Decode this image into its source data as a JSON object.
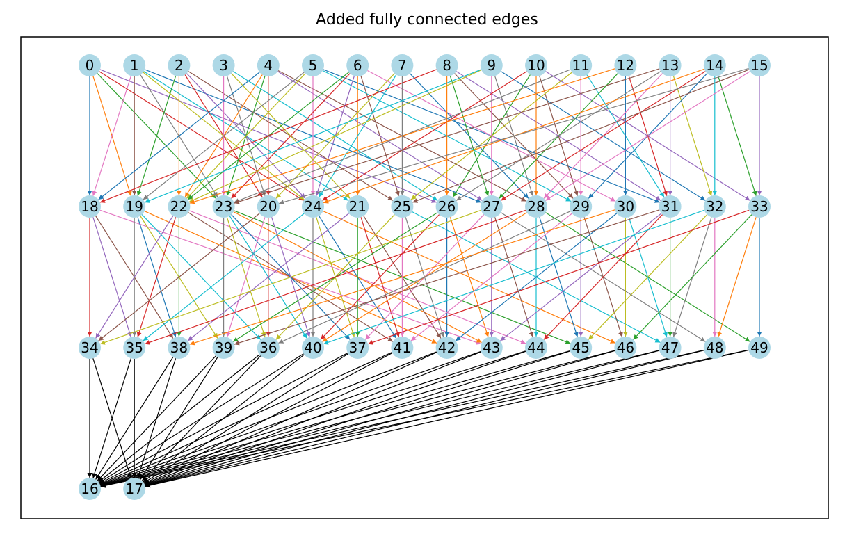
{
  "title": "Added fully connected edges",
  "colors": {
    "node_fill": "#add8e6",
    "final_edge": "#000000",
    "edge_cycle": [
      "#1f77b4",
      "#ff7f0e",
      "#2ca02c",
      "#d62728",
      "#9467bd",
      "#8c564b",
      "#e377c2",
      "#7f7f7f",
      "#bcbd22",
      "#17becf"
    ]
  },
  "layers": [
    [
      "0",
      "1",
      "2",
      "3",
      "4",
      "5",
      "6",
      "7",
      "8",
      "9",
      "10",
      "11",
      "12",
      "13",
      "14",
      "15"
    ],
    [
      "18",
      "19",
      "22",
      "23",
      "20",
      "24",
      "21",
      "25",
      "26",
      "27",
      "28",
      "29",
      "30",
      "31",
      "32",
      "33"
    ],
    [
      "34",
      "35",
      "38",
      "39",
      "36",
      "40",
      "37",
      "41",
      "42",
      "43",
      "44",
      "45",
      "46",
      "47",
      "48",
      "49"
    ],
    [
      "16",
      "17"
    ]
  ],
  "edges_layer1": [
    [
      "0",
      "18"
    ],
    [
      "0",
      "19"
    ],
    [
      "0",
      "23"
    ],
    [
      "0",
      "24"
    ],
    [
      "0",
      "26"
    ],
    [
      "1",
      "19"
    ],
    [
      "1",
      "18"
    ],
    [
      "1",
      "23"
    ],
    [
      "1",
      "24"
    ],
    [
      "1",
      "21"
    ],
    [
      "1",
      "27"
    ],
    [
      "2",
      "22"
    ],
    [
      "2",
      "19"
    ],
    [
      "2",
      "20"
    ],
    [
      "2",
      "24"
    ],
    [
      "2",
      "25"
    ],
    [
      "3",
      "23"
    ],
    [
      "3",
      "20"
    ],
    [
      "3",
      "21"
    ],
    [
      "3",
      "26"
    ],
    [
      "4",
      "18"
    ],
    [
      "4",
      "22"
    ],
    [
      "4",
      "23"
    ],
    [
      "4",
      "20"
    ],
    [
      "4",
      "27"
    ],
    [
      "4",
      "28"
    ],
    [
      "5",
      "24"
    ],
    [
      "5",
      "19"
    ],
    [
      "5",
      "22"
    ],
    [
      "5",
      "29"
    ],
    [
      "5",
      "31"
    ],
    [
      "6",
      "21"
    ],
    [
      "6",
      "22"
    ],
    [
      "6",
      "23"
    ],
    [
      "6",
      "24"
    ],
    [
      "6",
      "25"
    ],
    [
      "6",
      "30"
    ],
    [
      "7",
      "25"
    ],
    [
      "7",
      "20"
    ],
    [
      "7",
      "24"
    ],
    [
      "7",
      "28"
    ],
    [
      "8",
      "26"
    ],
    [
      "8",
      "27"
    ],
    [
      "8",
      "18"
    ],
    [
      "8",
      "31"
    ],
    [
      "8",
      "29"
    ],
    [
      "9",
      "27"
    ],
    [
      "9",
      "28"
    ],
    [
      "9",
      "22"
    ],
    [
      "9",
      "19"
    ],
    [
      "9",
      "32"
    ],
    [
      "10",
      "28"
    ],
    [
      "10",
      "26"
    ],
    [
      "10",
      "24"
    ],
    [
      "10",
      "33"
    ],
    [
      "10",
      "29"
    ],
    [
      "11",
      "29"
    ],
    [
      "11",
      "23"
    ],
    [
      "11",
      "25"
    ],
    [
      "11",
      "31"
    ],
    [
      "12",
      "30"
    ],
    [
      "12",
      "22"
    ],
    [
      "12",
      "27"
    ],
    [
      "12",
      "31"
    ],
    [
      "13",
      "31"
    ],
    [
      "13",
      "23"
    ],
    [
      "13",
      "28"
    ],
    [
      "13",
      "26"
    ],
    [
      "13",
      "32"
    ],
    [
      "14",
      "32"
    ],
    [
      "14",
      "29"
    ],
    [
      "14",
      "24"
    ],
    [
      "14",
      "33"
    ],
    [
      "14",
      "27"
    ],
    [
      "15",
      "33"
    ],
    [
      "15",
      "25"
    ],
    [
      "15",
      "28"
    ],
    [
      "15",
      "20"
    ]
  ],
  "edges_layer2": [
    [
      "18",
      "34"
    ],
    [
      "18",
      "35"
    ],
    [
      "18",
      "38"
    ],
    [
      "18",
      "43"
    ],
    [
      "19",
      "35"
    ],
    [
      "19",
      "39"
    ],
    [
      "19",
      "36"
    ],
    [
      "19",
      "38"
    ],
    [
      "19",
      "42"
    ],
    [
      "22",
      "38"
    ],
    [
      "22",
      "35"
    ],
    [
      "22",
      "34"
    ],
    [
      "22",
      "41"
    ],
    [
      "22",
      "44"
    ],
    [
      "23",
      "39"
    ],
    [
      "23",
      "36"
    ],
    [
      "23",
      "40"
    ],
    [
      "23",
      "37"
    ],
    [
      "23",
      "43"
    ],
    [
      "23",
      "45"
    ],
    [
      "20",
      "36"
    ],
    [
      "20",
      "40"
    ],
    [
      "20",
      "34"
    ],
    [
      "20",
      "39"
    ],
    [
      "24",
      "40"
    ],
    [
      "24",
      "37"
    ],
    [
      "24",
      "35"
    ],
    [
      "24",
      "41"
    ],
    [
      "24",
      "46"
    ],
    [
      "21",
      "37"
    ],
    [
      "21",
      "41"
    ],
    [
      "21",
      "38"
    ],
    [
      "21",
      "42"
    ],
    [
      "25",
      "41"
    ],
    [
      "25",
      "42"
    ],
    [
      "25",
      "36"
    ],
    [
      "25",
      "47"
    ],
    [
      "26",
      "42"
    ],
    [
      "26",
      "43"
    ],
    [
      "26",
      "39"
    ],
    [
      "26",
      "40"
    ],
    [
      "27",
      "43"
    ],
    [
      "27",
      "44"
    ],
    [
      "27",
      "37"
    ],
    [
      "27",
      "48"
    ],
    [
      "27",
      "34"
    ],
    [
      "28",
      "44"
    ],
    [
      "28",
      "45"
    ],
    [
      "28",
      "40"
    ],
    [
      "28",
      "49"
    ],
    [
      "28",
      "35"
    ],
    [
      "29",
      "45"
    ],
    [
      "29",
      "46"
    ],
    [
      "29",
      "41"
    ],
    [
      "29",
      "36"
    ],
    [
      "30",
      "46"
    ],
    [
      "30",
      "47"
    ],
    [
      "30",
      "42"
    ],
    [
      "30",
      "38"
    ],
    [
      "31",
      "47"
    ],
    [
      "31",
      "44"
    ],
    [
      "31",
      "43"
    ],
    [
      "31",
      "39"
    ],
    [
      "32",
      "48"
    ],
    [
      "32",
      "47"
    ],
    [
      "32",
      "45"
    ],
    [
      "32",
      "40"
    ],
    [
      "33",
      "49"
    ],
    [
      "33",
      "48"
    ],
    [
      "33",
      "46"
    ],
    [
      "33",
      "37"
    ]
  ]
}
